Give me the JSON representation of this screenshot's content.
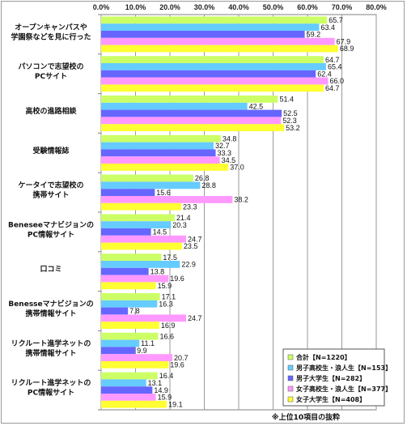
{
  "chart_data": {
    "type": "bar",
    "orientation": "horizontal",
    "xlim": [
      0,
      80
    ],
    "x_ticks": [
      "0.0%",
      "10.0%",
      "20.0%",
      "30.0%",
      "40.0%",
      "50.0%",
      "60.0%",
      "70.0%",
      "80.0%"
    ],
    "grid": true,
    "legend_position": "bottom-right",
    "categories": [
      "オープンキャンパスや\n学園祭などを見に行った",
      "パソコンで志望校の\nPCサイト",
      "高校の進路相談",
      "受験情報誌",
      "ケータイで志望校の\n携帯サイト",
      "Beneseeマナビジョンの\nPC情報サイト",
      "口コミ",
      "Benesseマナビジョンの\n携帯情報サイト",
      "リクルート進学ネットの\n携帯情報サイト",
      "リクルート進学ネットの\nPC情報サイト"
    ],
    "series": [
      {
        "name": "合計【N=1220】",
        "color": "#ccff66",
        "values": [
          65.7,
          64.7,
          51.4,
          34.8,
          26.8,
          21.4,
          17.5,
          17.1,
          16.6,
          16.4
        ]
      },
      {
        "name": "男子高校生・浪人生【N=153】",
        "color": "#66ccff",
        "values": [
          63.4,
          65.4,
          42.5,
          32.7,
          28.8,
          20.3,
          22.9,
          16.3,
          11.1,
          13.1
        ]
      },
      {
        "name": "男子大学生【N=282】",
        "color": "#6666ff",
        "values": [
          59.2,
          62.4,
          52.5,
          33.3,
          15.6,
          14.5,
          13.8,
          7.8,
          9.9,
          14.9
        ]
      },
      {
        "name": "女子高校生・浪人生【N=377】",
        "color": "#ff99ff",
        "values": [
          67.9,
          66.0,
          52.3,
          34.5,
          38.2,
          24.7,
          19.6,
          24.7,
          20.7,
          15.9
        ]
      },
      {
        "name": "女子大学生【N=408】",
        "color": "#ffff33",
        "values": [
          68.9,
          64.7,
          53.2,
          37.0,
          23.3,
          23.5,
          15.9,
          16.9,
          19.6,
          19.1
        ]
      }
    ],
    "note": "※上位10項目の抜粋"
  }
}
